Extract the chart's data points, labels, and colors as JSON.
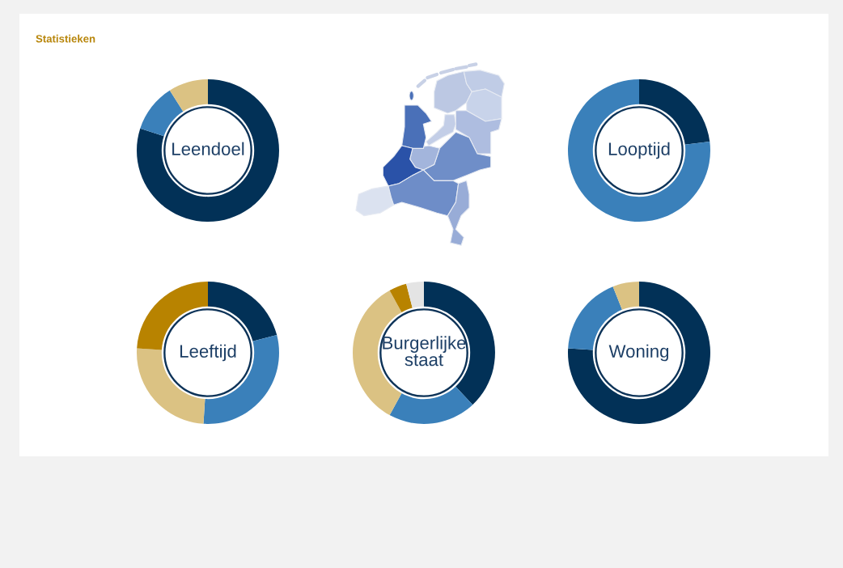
{
  "chart_data": [
    {
      "type": "other",
      "title": "Statistieken"
    },
    {
      "type": "donut",
      "title": "Leendoel",
      "categories": [
        null,
        null,
        null
      ],
      "values": [
        80,
        11,
        9
      ],
      "colors": [
        "#023157",
        "#3a80ba",
        "#dbc283"
      ]
    },
    {
      "type": "donut",
      "title": "Looptijd",
      "categories": [
        null,
        null
      ],
      "values": [
        23,
        77
      ],
      "colors": [
        "#023157",
        "#3a80ba"
      ]
    },
    {
      "type": "donut",
      "title": "Leeftijd",
      "categories": [
        null,
        null,
        null,
        null
      ],
      "values": [
        21,
        30,
        25,
        24
      ],
      "colors": [
        "#023157",
        "#3a80ba",
        "#dbc283",
        "#b88300"
      ]
    },
    {
      "type": "donut",
      "title": "Burgerlijke staat",
      "categories": [
        null,
        null,
        null,
        null,
        null
      ],
      "values": [
        38,
        20,
        34,
        4,
        4
      ],
      "colors": [
        "#023157",
        "#3a80ba",
        "#dbc283",
        "#b88300",
        "#e4e4e4"
      ]
    },
    {
      "type": "donut",
      "title": "Woning",
      "categories": [
        null,
        null,
        null
      ],
      "values": [
        76,
        18,
        6
      ],
      "colors": [
        "#023157",
        "#3a80ba",
        "#dbc283"
      ]
    }
  ]
}
